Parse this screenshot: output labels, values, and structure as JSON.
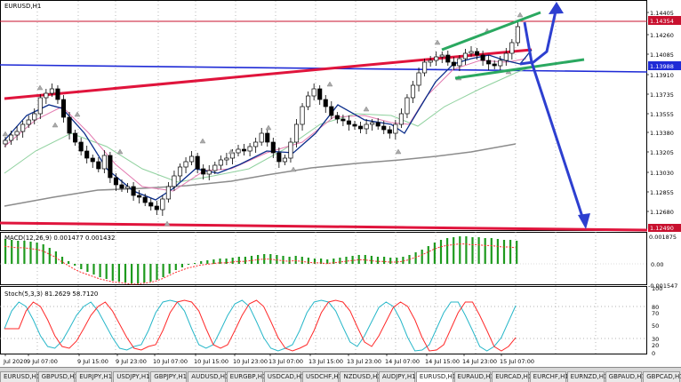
{
  "main_chart": {
    "title": "EURUSD,H1",
    "price_ticks": [
      "1.14405",
      "1.14260",
      "1.14085",
      "1.13910",
      "1.13735",
      "1.13555",
      "1.13380",
      "1.13205",
      "1.13030",
      "1.12855",
      "1.12680"
    ],
    "bid_badge": "1.14354",
    "level_badge": "1.13988",
    "low_badge": "1.12490"
  },
  "macd": {
    "label": "MACD(12,26,9) 0.001477 0.001432",
    "ticks": [
      "0.001875",
      "0.00",
      "-0.001547"
    ]
  },
  "stoch": {
    "label": "Stoch(5,3,3) 81.2629 58.7120",
    "ticks": [
      "100",
      "80",
      "70",
      "50",
      "30",
      "20",
      "0"
    ]
  },
  "time_axis": [
    "Jul 2020",
    "9 Jul 07:00",
    "9 Jul 15:00",
    "9 Jul 23:00",
    "10 Jul 07:00",
    "10 Jul 15:00",
    "10 Jul 23:00",
    "13 Jul 07:00",
    "13 Jul 15:00",
    "13 Jul 23:00",
    "14 Jul 07:00",
    "14 Jul 15:00",
    "14 Jul 23:00",
    "15 Jul 07:00"
  ],
  "tabs": [
    "EURUSD,H1",
    "GBPUSD,H1",
    "EURJPY,H1",
    "USDJPY,H1",
    "GBPJPY,H1",
    "AUDUSD,H1",
    "EURGBP,H1",
    "USDCAD,H1",
    "USDCHF,H1",
    "NZDUSD,H1",
    "AUDJPY,H1",
    "EURUSD,H1",
    "EURAUD,H1",
    "EURCAD,H1",
    "EURCHF,H1",
    "EURNZD,H1",
    "GBPAUD,H1",
    "GBPCAD,H1"
  ],
  "active_tab": 11,
  "colors": {
    "bull_candle": "#ffffff",
    "bear_candle": "#000000",
    "macd_hist": "#1e9a1e",
    "signal": "#ff2a2a",
    "channel": "#2aa860",
    "arrow": "#2d3fd0",
    "blue_level": "#1f2bd6",
    "red_trend": "#e0143c"
  }
}
